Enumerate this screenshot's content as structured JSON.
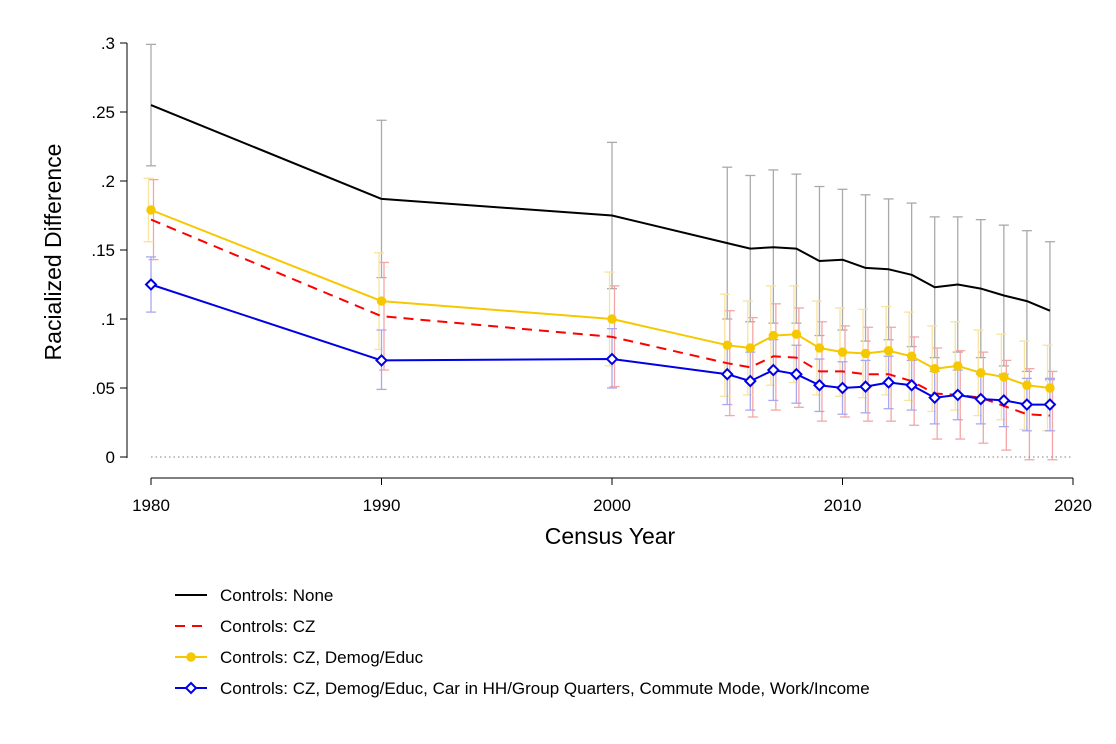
{
  "chart_data": {
    "type": "line",
    "title": "",
    "xlabel": "Census Year",
    "ylabel": "Racialized Difference",
    "xlim": [
      1980,
      2020
    ],
    "ylim": [
      0,
      0.3
    ],
    "xticks": [
      {
        "value": 1980,
        "label": "1980"
      },
      {
        "value": 1990,
        "label": "1990"
      },
      {
        "value": 2000,
        "label": "2000"
      },
      {
        "value": 2010,
        "label": "2010"
      },
      {
        "value": 2020,
        "label": "2020"
      }
    ],
    "yticks": [
      {
        "value": 0,
        "label": "0"
      },
      {
        "value": 0.05,
        "label": ".05"
      },
      {
        "value": 0.1,
        "label": ".1"
      },
      {
        "value": 0.15,
        "label": ".15"
      },
      {
        "value": 0.2,
        "label": ".2"
      },
      {
        "value": 0.25,
        "label": ".25"
      },
      {
        "value": 0.3,
        "label": ".3"
      }
    ],
    "grid": false,
    "zero_reference_line": true,
    "legend_position": "bottom",
    "x": [
      1980,
      1990,
      2000,
      2005,
      2006,
      2007,
      2008,
      2009,
      2010,
      2011,
      2012,
      2013,
      2014,
      2015,
      2016,
      2017,
      2018,
      2019
    ],
    "series": [
      {
        "name": "Controls: None",
        "color": "#000000",
        "ci_color": "#aaaaaa",
        "dash": "solid",
        "marker": "none",
        "values": [
          0.255,
          0.187,
          0.175,
          0.155,
          0.151,
          0.152,
          0.151,
          0.142,
          0.143,
          0.137,
          0.136,
          0.132,
          0.123,
          0.125,
          0.122,
          0.117,
          0.113,
          0.106
        ],
        "ci_low": [
          0.211,
          0.13,
          0.122,
          0.1,
          0.098,
          0.097,
          0.097,
          0.088,
          0.092,
          0.084,
          0.085,
          0.08,
          0.072,
          0.076,
          0.072,
          0.066,
          0.062,
          0.056
        ],
        "ci_high": [
          0.299,
          0.244,
          0.228,
          0.21,
          0.204,
          0.208,
          0.205,
          0.196,
          0.194,
          0.19,
          0.187,
          0.184,
          0.174,
          0.174,
          0.172,
          0.168,
          0.164,
          0.156
        ]
      },
      {
        "name": "Controls: CZ",
        "color": "#ff0000",
        "ci_color": "#f4a6a6",
        "dash": "dashed",
        "marker": "none",
        "values": [
          0.172,
          0.102,
          0.087,
          0.068,
          0.065,
          0.073,
          0.072,
          0.062,
          0.062,
          0.06,
          0.06,
          0.055,
          0.046,
          0.045,
          0.043,
          0.037,
          0.031,
          0.03
        ],
        "ci_low": [
          0.143,
          0.063,
          0.051,
          0.03,
          0.029,
          0.034,
          0.036,
          0.026,
          0.029,
          0.026,
          0.026,
          0.023,
          0.013,
          0.013,
          0.01,
          0.005,
          -0.002,
          -0.002
        ],
        "ci_high": [
          0.201,
          0.141,
          0.124,
          0.106,
          0.101,
          0.111,
          0.108,
          0.098,
          0.095,
          0.094,
          0.094,
          0.087,
          0.079,
          0.077,
          0.076,
          0.07,
          0.064,
          0.062
        ]
      },
      {
        "name": "Controls: CZ, Demog/Educ",
        "color": "#f5c800",
        "ci_color": "#f8e3a0",
        "dash": "solid",
        "marker": "circle",
        "values": [
          0.179,
          0.113,
          0.1,
          0.081,
          0.079,
          0.088,
          0.089,
          0.079,
          0.076,
          0.075,
          0.077,
          0.073,
          0.064,
          0.066,
          0.061,
          0.058,
          0.052,
          0.05
        ],
        "ci_low": [
          0.156,
          0.078,
          0.066,
          0.044,
          0.045,
          0.052,
          0.054,
          0.045,
          0.044,
          0.043,
          0.045,
          0.041,
          0.033,
          0.034,
          0.03,
          0.027,
          0.02,
          0.019
        ],
        "ci_high": [
          0.202,
          0.148,
          0.134,
          0.118,
          0.113,
          0.124,
          0.124,
          0.113,
          0.108,
          0.107,
          0.109,
          0.105,
          0.095,
          0.098,
          0.092,
          0.089,
          0.084,
          0.081
        ]
      },
      {
        "name": "Controls: CZ, Demog/Educ, Car in HH/Group Quarters, Commute Mode, Work/Income",
        "color": "#0000e6",
        "ci_color": "#a8a8f0",
        "dash": "solid",
        "marker": "diamond",
        "values": [
          0.125,
          0.07,
          0.071,
          0.06,
          0.055,
          0.063,
          0.06,
          0.052,
          0.05,
          0.051,
          0.054,
          0.052,
          0.043,
          0.045,
          0.042,
          0.041,
          0.038,
          0.038
        ],
        "ci_low": [
          0.105,
          0.049,
          0.05,
          0.038,
          0.034,
          0.041,
          0.039,
          0.033,
          0.031,
          0.032,
          0.035,
          0.034,
          0.024,
          0.027,
          0.024,
          0.022,
          0.019,
          0.019
        ],
        "ci_high": [
          0.145,
          0.092,
          0.093,
          0.082,
          0.076,
          0.085,
          0.081,
          0.071,
          0.069,
          0.07,
          0.073,
          0.07,
          0.062,
          0.063,
          0.06,
          0.06,
          0.057,
          0.057
        ]
      }
    ]
  }
}
